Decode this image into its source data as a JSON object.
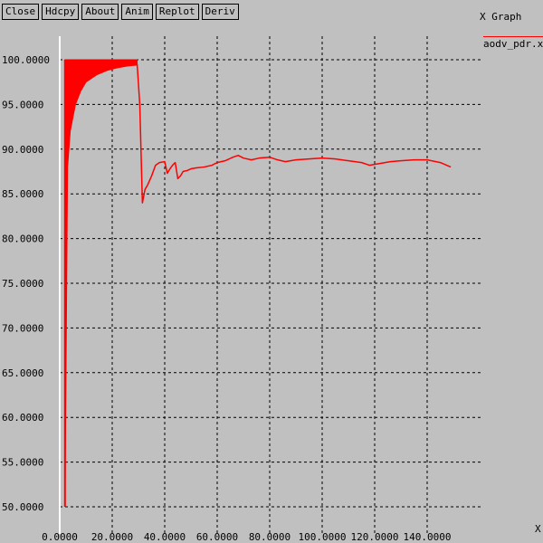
{
  "toolbar": {
    "buttons": [
      "Close",
      "Hdcpy",
      "About",
      "Anim",
      "Replot",
      "Deriv"
    ]
  },
  "window_title": "X Graph",
  "edge_label": "X",
  "colors": {
    "background": "#c0c0c0",
    "series": "#ff0000",
    "grid": "#000000",
    "axis": "#ffffff"
  },
  "chart_data": {
    "type": "line",
    "xlim": [
      0,
      155000
    ],
    "ylim": [
      50,
      100
    ],
    "x_ticks": [
      0,
      20000,
      40000,
      60000,
      80000,
      100000,
      120000,
      140000
    ],
    "x_tick_labels": [
      "0.0000",
      "20.0000",
      "40.0000",
      "60.0000",
      "80.0000",
      "100.0000",
      "120.0000",
      "140.0000"
    ],
    "y_ticks": [
      50,
      55,
      60,
      65,
      70,
      75,
      80,
      85,
      90,
      95,
      100
    ],
    "y_tick_labels": [
      "50.0000",
      "55.0000",
      "60.0000",
      "65.0000",
      "70.0000",
      "75.0000",
      "80.0000",
      "85.0000",
      "90.0000",
      "95.0000",
      "100.0000"
    ],
    "grid": true,
    "legend_position": "top-right",
    "series": [
      {
        "name": "aodv_pdr.xg",
        "color": "#ff0000",
        "envelope_x": [
          2000,
          3000,
          4000,
          6000,
          8000,
          10000,
          14000,
          18000,
          22000,
          26000,
          29500
        ],
        "envelope_upper": [
          100,
          100,
          100,
          100,
          100,
          100,
          100,
          100,
          100,
          100,
          100
        ],
        "envelope_lower": [
          50,
          88,
          92,
          95,
          96.5,
          97.5,
          98.3,
          98.8,
          99.1,
          99.3,
          99.4
        ],
        "x": [
          29500,
          30500,
          31500,
          32500,
          33500,
          35000,
          36500,
          38000,
          40000,
          41000,
          42000,
          43000,
          44000,
          45000,
          46000,
          47000,
          48500,
          50000,
          52000,
          55000,
          58000,
          60000,
          63000,
          66000,
          68000,
          70000,
          73000,
          76000,
          80000,
          83000,
          86000,
          90000,
          95000,
          100000,
          105000,
          110000,
          115000,
          118000,
          122000,
          126000,
          130000,
          135000,
          140000,
          145000,
          149000
        ],
        "y": [
          99.5,
          95,
          84,
          85.5,
          86,
          87,
          88.2,
          88.5,
          88.6,
          87.3,
          87.8,
          88.2,
          88.5,
          86.7,
          87,
          87.5,
          87.6,
          87.8,
          87.9,
          88,
          88.2,
          88.5,
          88.7,
          89.1,
          89.3,
          89,
          88.8,
          89,
          89.1,
          88.8,
          88.6,
          88.8,
          88.9,
          89,
          88.9,
          88.7,
          88.5,
          88.2,
          88.4,
          88.6,
          88.7,
          88.8,
          88.8,
          88.5,
          88
        ]
      }
    ]
  }
}
